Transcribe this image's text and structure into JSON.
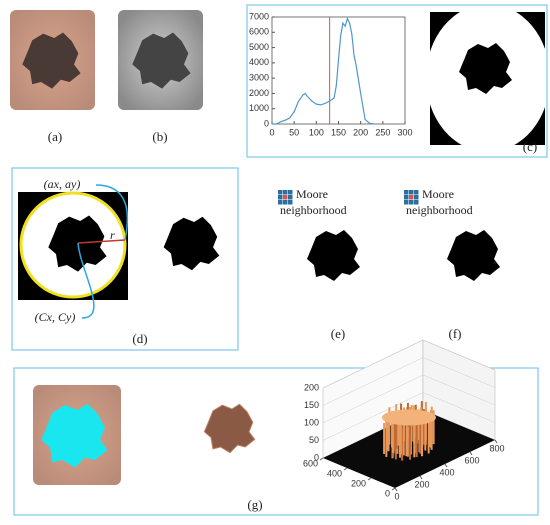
{
  "panels": {
    "a": "(a)",
    "b": "(b)",
    "c": "(c)",
    "d": "(d)",
    "e": "(e)",
    "f": "(f)",
    "g": "(g)"
  },
  "annotations": {
    "a_point": "(ax, ay)",
    "radius": "r",
    "c_point": "(Cx, Cy)",
    "moore_e": [
      "Moore",
      "neighborhood"
    ],
    "moore_f": [
      "Moore",
      "neighborhood"
    ]
  },
  "chart_data": {
    "type": "line",
    "x": [
      0,
      10,
      20,
      30,
      40,
      50,
      60,
      70,
      75,
      80,
      90,
      100,
      110,
      120,
      130,
      140,
      145,
      150,
      155,
      160,
      165,
      170,
      175,
      180,
      185,
      190,
      200,
      210,
      220,
      230
    ],
    "series": [
      {
        "color": "#4f97c9",
        "values": [
          0,
          0,
          150,
          250,
          400,
          800,
          1500,
          1900,
          2000,
          1800,
          1500,
          1300,
          1250,
          1350,
          1500,
          1700,
          2500,
          4200,
          5800,
          6600,
          6400,
          6900,
          6600,
          5900,
          4500,
          3800,
          2000,
          300,
          50,
          0
        ]
      }
    ],
    "vline": {
      "x": 130,
      "color": "#d9534f"
    },
    "xlim": [
      0,
      300
    ],
    "ylim": [
      0,
      7000
    ],
    "xticks": [
      0,
      50,
      100,
      150,
      200,
      250,
      300
    ],
    "yticks": [
      0,
      1000,
      2000,
      3000,
      4000,
      5000,
      6000,
      7000
    ]
  },
  "surface_plot": {
    "zticks": [
      0,
      50,
      100,
      150,
      200
    ],
    "xticks": [
      0,
      200,
      400,
      600
    ],
    "yticks": [
      0,
      200,
      400,
      600,
      800
    ]
  }
}
